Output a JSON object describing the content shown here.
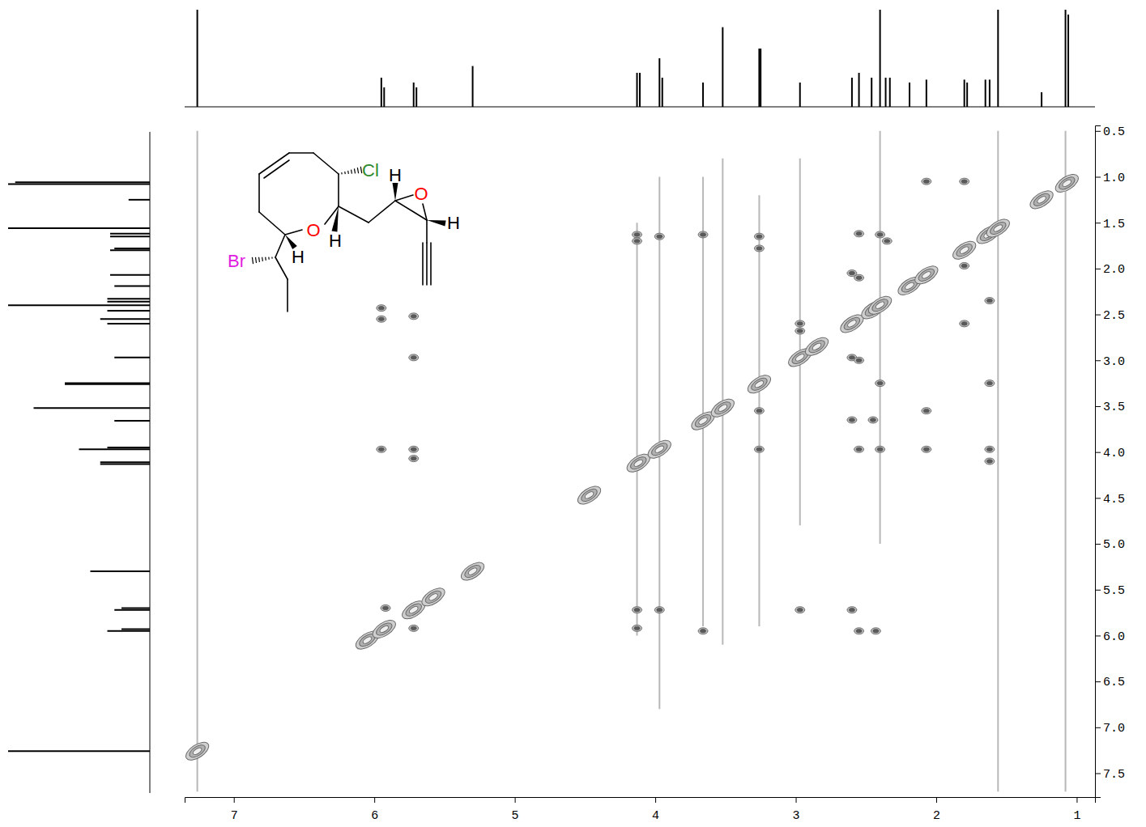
{
  "chart_data": {
    "type": "cosy",
    "xlim": [
      7.35,
      0.87
    ],
    "ylim": [
      0.44,
      7.76
    ],
    "xticks": [
      7,
      6,
      5,
      4,
      3,
      2,
      1
    ],
    "yticks": [
      0.5,
      {
        "value": 1,
        "label": "1.0"
      },
      1.5,
      {
        "value": 2,
        "label": "2.0"
      },
      2.5,
      {
        "value": 3,
        "label": "3.0"
      },
      3.5,
      {
        "value": 4,
        "label": "4.0"
      },
      4.5,
      {
        "value": 5,
        "label": "5.0"
      },
      5.5,
      {
        "value": 6,
        "label": "6.0"
      },
      6.5,
      {
        "value": 7,
        "label": "7.0"
      },
      7.5
    ],
    "spectrum": {
      "x": [
        7.26,
        5.95,
        5.93,
        5.72,
        5.7,
        5.3,
        4.13,
        4.11,
        3.97,
        3.95,
        3.66,
        3.52,
        3.26,
        3.25,
        2.97,
        2.6,
        2.55,
        2.46,
        2.4,
        2.36,
        2.33,
        2.19,
        2.07,
        1.8,
        1.78,
        1.65,
        1.62,
        1.56,
        1.25,
        1.08,
        1.06
      ],
      "values": [
        1.0,
        0.3,
        0.2,
        0.25,
        0.2,
        0.42,
        0.35,
        0.35,
        0.5,
        0.3,
        0.25,
        0.82,
        0.6,
        0.6,
        0.25,
        0.3,
        0.35,
        0.3,
        1.0,
        0.3,
        0.3,
        0.25,
        0.28,
        0.28,
        0.25,
        0.28,
        0.28,
        1.0,
        0.15,
        1.0,
        0.95
      ]
    },
    "diagonal": [
      7.26,
      6.05,
      5.93,
      5.72,
      5.58,
      5.3,
      4.47,
      4.12,
      3.97,
      3.66,
      3.52,
      3.26,
      2.97,
      2.85,
      2.6,
      2.45,
      2.4,
      2.19,
      2.07,
      1.8,
      1.63,
      1.56,
      1.25,
      1.07
    ],
    "cross_peaks": {
      "x": [
        5.95,
        5.95,
        5.72,
        5.72,
        5.95,
        5.72,
        5.72,
        5.92,
        5.72,
        2.43,
        2.55,
        2.97,
        2.6,
        4.13,
        4.13,
        3.97,
        3.66,
        4.13,
        4.13,
        3.97,
        3.66,
        3.26,
        3.26,
        3.26,
        3.26,
        2.97,
        2.97,
        2.6,
        2.55,
        2.6,
        2.45,
        2.4,
        2.55,
        2.4,
        2.07,
        2.07,
        2.07,
        1.8,
        1.8,
        1.8,
        1.62,
        1.62,
        1.62,
        1.62,
        2.4,
        2.35,
        2.55,
        2.6,
        2.55
      ],
      "y": [
        2.43,
        2.55,
        2.52,
        2.97,
        3.97,
        3.97,
        4.07,
        5.7,
        5.92,
        5.95,
        5.95,
        5.72,
        5.72,
        5.72,
        5.92,
        5.72,
        5.95,
        1.63,
        1.7,
        1.65,
        1.63,
        1.65,
        1.78,
        3.97,
        3.55,
        2.6,
        2.68,
        2.97,
        3.0,
        3.65,
        3.65,
        3.25,
        3.97,
        3.97,
        3.55,
        3.97,
        1.05,
        1.05,
        1.97,
        2.6,
        2.35,
        3.25,
        3.97,
        4.1,
        1.63,
        1.7,
        1.62,
        2.05,
        2.1
      ]
    },
    "t1_noise": {
      "x": [
        7.26,
        4.13,
        3.97,
        3.66,
        3.52,
        3.26,
        2.97,
        2.4,
        1.56,
        1.08
      ],
      "y_start": [
        0.5,
        1.5,
        1.0,
        1.0,
        0.8,
        1.2,
        0.8,
        0.5,
        0.5,
        0.5
      ],
      "y_end": [
        7.7,
        6.0,
        6.8,
        5.9,
        6.1,
        5.9,
        4.8,
        5.0,
        7.7,
        7.7
      ]
    },
    "annotations": [
      {
        "text": "Cl",
        "color": "#2e8b2e"
      },
      {
        "text": "H",
        "color": "#000000"
      },
      {
        "text": "O",
        "color": "#ff0000"
      },
      {
        "text": "H",
        "color": "#000000"
      },
      {
        "text": "O",
        "color": "#ff0000"
      },
      {
        "text": "H",
        "color": "#000000"
      },
      {
        "text": "Br",
        "color": "#e020e0"
      },
      {
        "text": "H",
        "color": "#000000"
      }
    ]
  }
}
